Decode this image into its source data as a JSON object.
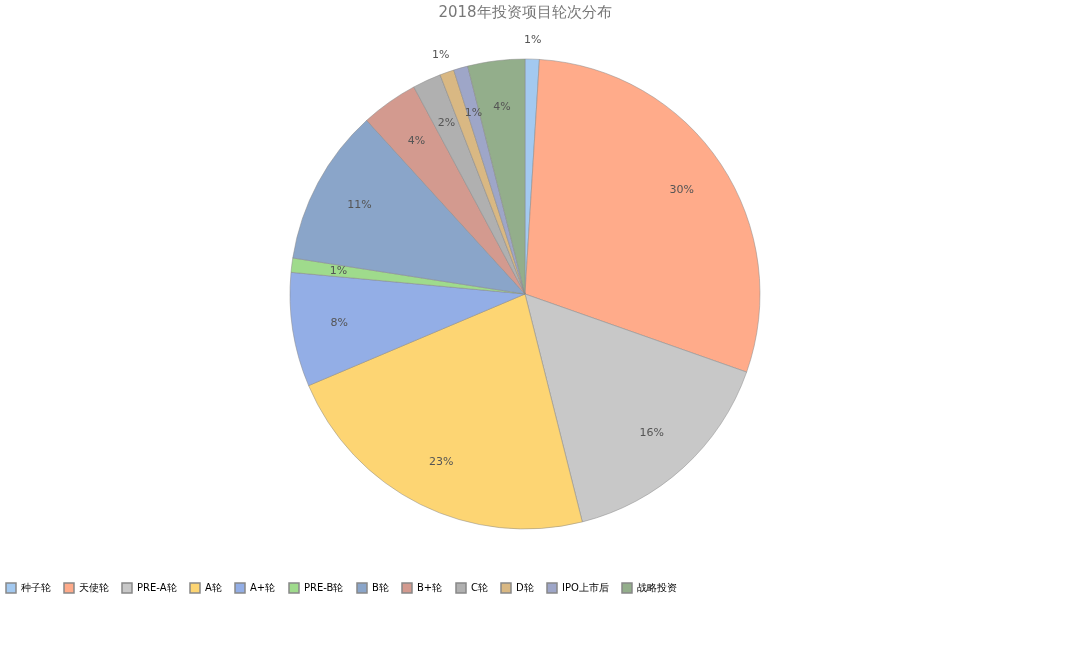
{
  "chart_data": {
    "type": "pie",
    "title": "2018年投资项目轮次分布",
    "categories": [
      "种子轮",
      "天使轮",
      "PRE-A轮",
      "A轮",
      "A+轮",
      "PRE-B轮",
      "B轮",
      "B+轮",
      "C轮",
      "D轮",
      "IPO上市后",
      "战略投资"
    ],
    "values": [
      1,
      30,
      16,
      23,
      8,
      1,
      11,
      4,
      2,
      1,
      1,
      4
    ],
    "colors": [
      "#a3c9f0",
      "#ffab8a",
      "#c8c8c8",
      "#fdd573",
      "#93aee6",
      "#9fdb8c",
      "#8aa5c9",
      "#d39a8f",
      "#b0b0b0",
      "#d9b883",
      "#9ea6c8",
      "#93ae8b"
    ],
    "value_labels": [
      "1%",
      "30%",
      "16%",
      "23%",
      "8%",
      "1%",
      "11%",
      "4%",
      "2%",
      "1%",
      "1%",
      "4%"
    ],
    "legend": "bottom"
  }
}
